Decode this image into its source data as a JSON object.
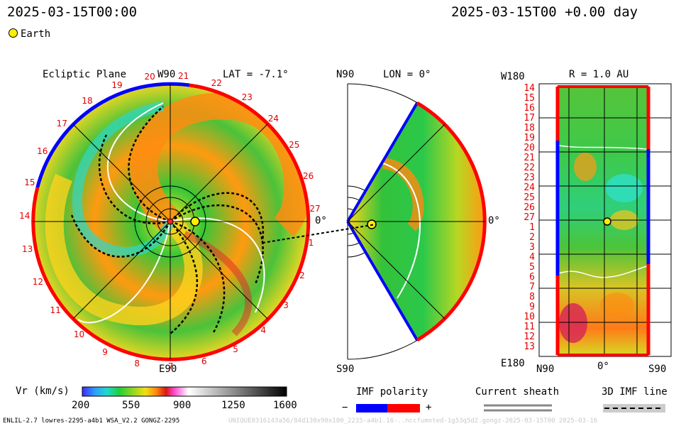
{
  "header": {
    "left_datetime": "2025-03-15T00:00",
    "right_datetime": "2025-03-15T00 +0.00 day"
  },
  "legend": {
    "earth_label": "Earth",
    "earth_color": "#ffee00"
  },
  "ecliptic": {
    "title": "Ecliptic Plane",
    "top_label": "W90",
    "lat_label": "LAT = -7.1°",
    "right_label": "0°",
    "bottom_label": "E90",
    "sector_numbers": [
      "20",
      "21",
      "22",
      "23",
      "24",
      "25",
      "26",
      "27",
      "1",
      "2",
      "3",
      "4",
      "5",
      "6",
      "7",
      "8",
      "9",
      "10",
      "11",
      "12",
      "13",
      "14",
      "15",
      "16",
      "17",
      "18",
      "19"
    ]
  },
  "meridional": {
    "top_label": "N90",
    "lon_label": "LON = 0°",
    "right_label": "0°",
    "bottom_label": "S90"
  },
  "synoptic": {
    "top_left_label": "W180",
    "r_label": "R = 1.0 AU",
    "row_labels": [
      "14",
      "15",
      "16",
      "17",
      "18",
      "19",
      "20",
      "21",
      "22",
      "23",
      "24",
      "25",
      "26",
      "27",
      "1",
      "2",
      "3",
      "4",
      "5",
      "6",
      "7",
      "8",
      "9",
      "10",
      "11",
      "12",
      "13"
    ],
    "bottom_left_label": "E180",
    "x_labels": [
      "N90",
      "0°",
      "S90"
    ]
  },
  "colorbar": {
    "label": "Vr (km/s)",
    "ticks": [
      "200",
      "550",
      "900",
      "1250",
      "1600"
    ],
    "stops": [
      "#3a2cff",
      "#2f9bff",
      "#20d8d0",
      "#1fcf3a",
      "#a6d81c",
      "#f3df14",
      "#ff8a0c",
      "#d81818",
      "#ff48d0",
      "#ffffff",
      "#888888",
      "#000000"
    ]
  },
  "imf_polarity": {
    "label": "IMF polarity",
    "minus": "−",
    "plus": "+",
    "minus_color": "#0000ff",
    "plus_color": "#ff0000"
  },
  "current_sheath": {
    "label": "Current sheath"
  },
  "imf_line": {
    "label": "3D IMF line"
  },
  "footer": {
    "left_text": "ENLIL-2.7 lowres-2295-a4b1 WSA_V2.2 GONGZ-2295",
    "right_text": "UNIQUE0316143a56/84d130x90x180_2235-a4b1.16-..nccfumnted-1g53q5d2.gongz-2025-03-15T00   2025-03-16"
  }
}
